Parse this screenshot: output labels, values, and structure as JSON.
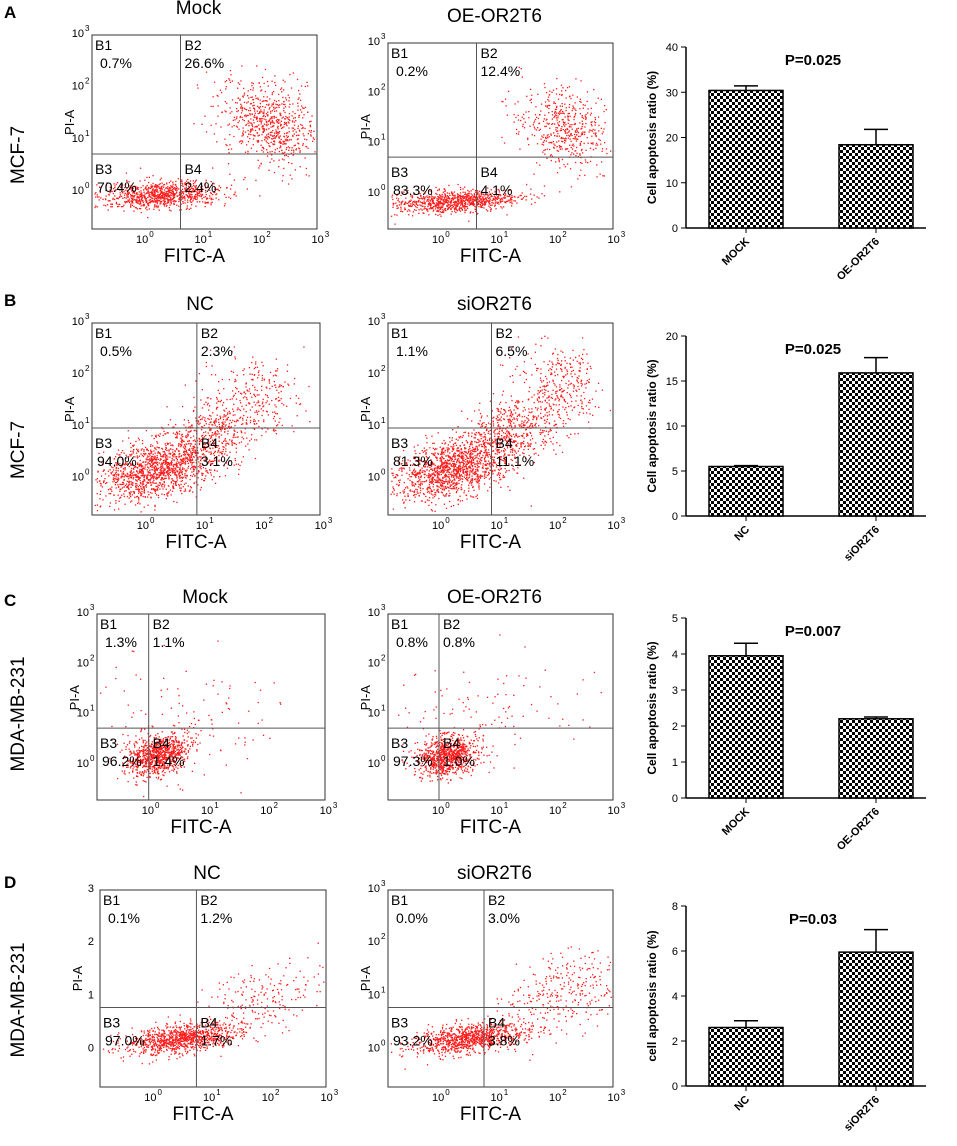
{
  "colors": {
    "dots": "#ff1a1a",
    "frame": "#333333",
    "gate": "#555555",
    "bar_fill_dark": "#000000",
    "bar_fill_light": "#ffffff"
  },
  "chart_data": [
    {
      "type": "scatter",
      "panel": "A",
      "row_label": "MCF-7",
      "title": "Mock",
      "xlabel": "FITC-A",
      "ylabel": "PI-A",
      "x_ticks": [
        "10^0",
        "10^1",
        "10^2",
        "10^3"
      ],
      "y_ticks": [
        "10^0",
        "10^1",
        "10^2",
        "10^3"
      ],
      "quadrants": [
        {
          "id": "B1",
          "value": "0.7%"
        },
        {
          "id": "B2",
          "value": "26.6%"
        },
        {
          "id": "B3",
          "value": "70.4%"
        },
        {
          "id": "B4",
          "value": "2.4%"
        }
      ],
      "gate_x": 1.0,
      "gate_y": 0.8
    },
    {
      "type": "scatter",
      "panel": "A",
      "title": "OE-OR2T6",
      "xlabel": "FITC-A",
      "ylabel": "PI-A",
      "x_ticks": [
        "10^0",
        "10^1",
        "10^2",
        "10^3"
      ],
      "y_ticks": [
        "10^0",
        "10^1",
        "10^2",
        "10^3"
      ],
      "quadrants": [
        {
          "id": "B1",
          "value": "0.2%"
        },
        {
          "id": "B2",
          "value": "12.4%"
        },
        {
          "id": "B3",
          "value": "83.3%"
        },
        {
          "id": "B4",
          "value": "4.1%"
        }
      ],
      "gate_x": 1.0,
      "gate_y": 0.8
    },
    {
      "type": "bar",
      "panel": "A",
      "categories": [
        "MOCK",
        "OE-OR2T6"
      ],
      "values": [
        30.4,
        18.4
      ],
      "errors": [
        1.0,
        3.4
      ],
      "ylabel": "Cell apoptosis ratio (%)",
      "yticks": [
        0,
        10,
        20,
        30,
        40
      ],
      "ylim": [
        0,
        40
      ],
      "annotation": "P=0.025"
    },
    {
      "type": "scatter",
      "panel": "B",
      "row_label": "MCF-7",
      "title": "NC",
      "xlabel": "FITC-A",
      "ylabel": "PI-A",
      "x_ticks": [
        "10^0",
        "10^1",
        "10^2",
        "10^3"
      ],
      "y_ticks": [
        "10^0",
        "10^1",
        "10^2",
        "10^3"
      ],
      "quadrants": [
        {
          "id": "B1",
          "value": "0.5%"
        },
        {
          "id": "B2",
          "value": "2.3%"
        },
        {
          "id": "B3",
          "value": "94.0%"
        },
        {
          "id": "B4",
          "value": "3.1%"
        }
      ],
      "gate_x": 1.2,
      "gate_y": 1.0
    },
    {
      "type": "scatter",
      "panel": "B",
      "title": "siOR2T6",
      "xlabel": "FITC-A",
      "ylabel": "PI-A",
      "x_ticks": [
        "10^0",
        "10^1",
        "10^2",
        "10^3"
      ],
      "y_ticks": [
        "10^0",
        "10^1",
        "10^2",
        "10^3"
      ],
      "quadrants": [
        {
          "id": "B1",
          "value": "1.1%"
        },
        {
          "id": "B2",
          "value": "6.5%"
        },
        {
          "id": "B3",
          "value": "81.3%"
        },
        {
          "id": "B4",
          "value": "11.1%"
        }
      ],
      "gate_x": 1.2,
      "gate_y": 1.0
    },
    {
      "type": "bar",
      "panel": "B",
      "categories": [
        "NC",
        "siOR2T6"
      ],
      "values": [
        5.5,
        15.9
      ],
      "errors": [
        0.1,
        1.7
      ],
      "ylabel": "Cell apoptosis ratio (%)",
      "yticks": [
        0,
        5,
        10,
        15,
        20
      ],
      "ylim": [
        0,
        20
      ],
      "annotation": "P=0.025"
    },
    {
      "type": "scatter",
      "panel": "C",
      "row_label": "MDA-MB-231",
      "title": "Mock",
      "xlabel": "FITC-A",
      "ylabel": "PI-A",
      "x_ticks": [
        "10^0",
        "10^1",
        "10^2",
        "10^3"
      ],
      "y_ticks": [
        "10^0",
        "10^1",
        "10^2",
        "10^3"
      ],
      "quadrants": [
        {
          "id": "B1",
          "value": "1.3%"
        },
        {
          "id": "B2",
          "value": "1.1%"
        },
        {
          "id": "B3",
          "value": "96.2%"
        },
        {
          "id": "B4",
          "value": "1.4%"
        }
      ],
      "gate_x": 0.5,
      "gate_y": 0.8
    },
    {
      "type": "scatter",
      "panel": "C",
      "title": "OE-OR2T6",
      "xlabel": "FITC-A",
      "ylabel": "PI-A",
      "x_ticks": [
        "10^0",
        "10^1",
        "10^2",
        "10^3"
      ],
      "y_ticks": [
        "10^0",
        "10^1",
        "10^2",
        "10^3"
      ],
      "quadrants": [
        {
          "id": "B1",
          "value": "0.8%"
        },
        {
          "id": "B2",
          "value": "0.8%"
        },
        {
          "id": "B3",
          "value": "97.3%"
        },
        {
          "id": "B4",
          "value": "1.0%"
        }
      ],
      "gate_x": 0.5,
      "gate_y": 0.8
    },
    {
      "type": "bar",
      "panel": "C",
      "categories": [
        "MOCK",
        "OE-OR2T6"
      ],
      "values": [
        3.95,
        2.2
      ],
      "errors": [
        0.35,
        0.05
      ],
      "ylabel": "Cell apoptosis ratio (%)",
      "yticks": [
        0,
        1,
        2,
        3,
        4,
        5
      ],
      "ylim": [
        0,
        5
      ],
      "annotation": "P=0.007"
    },
    {
      "type": "scatter",
      "panel": "D",
      "row_label": "MDA-MB-231",
      "title": "NC",
      "xlabel": "FITC-A",
      "ylabel": "PI-A",
      "x_ticks": [
        "10^0",
        "10^1",
        "10^2",
        "10^3"
      ],
      "y_ticks": [
        "0",
        "1",
        "2",
        "3"
      ],
      "quadrants": [
        {
          "id": "B1",
          "value": "0.1%"
        },
        {
          "id": "B2",
          "value": "1.2%"
        },
        {
          "id": "B3",
          "value": "97.0%"
        },
        {
          "id": "B4",
          "value": "1.7%"
        }
      ],
      "gate_x": 1.1,
      "gate_y": 0.85
    },
    {
      "type": "scatter",
      "panel": "D",
      "title": "siOR2T6",
      "xlabel": "FITC-A",
      "ylabel": "PI-A",
      "x_ticks": [
        "10^0",
        "10^1",
        "10^2",
        "10^3"
      ],
      "y_ticks": [
        "10^0",
        "10^1",
        "10^2",
        "10^3"
      ],
      "quadrants": [
        {
          "id": "B1",
          "value": "0.0%"
        },
        {
          "id": "B2",
          "value": "3.0%"
        },
        {
          "id": "B3",
          "value": "93.2%"
        },
        {
          "id": "B4",
          "value": "3.8%"
        }
      ],
      "gate_x": 1.1,
      "gate_y": 0.85
    },
    {
      "type": "bar",
      "panel": "D",
      "categories": [
        "NC",
        "siOR2T6"
      ],
      "values": [
        2.6,
        5.95
      ],
      "errors": [
        0.3,
        1.0
      ],
      "ylabel": "cell apoptosis ratio (%)",
      "yticks": [
        0,
        2,
        4,
        6,
        8
      ],
      "ylim": [
        0,
        8
      ],
      "annotation": "P=0.03"
    }
  ]
}
